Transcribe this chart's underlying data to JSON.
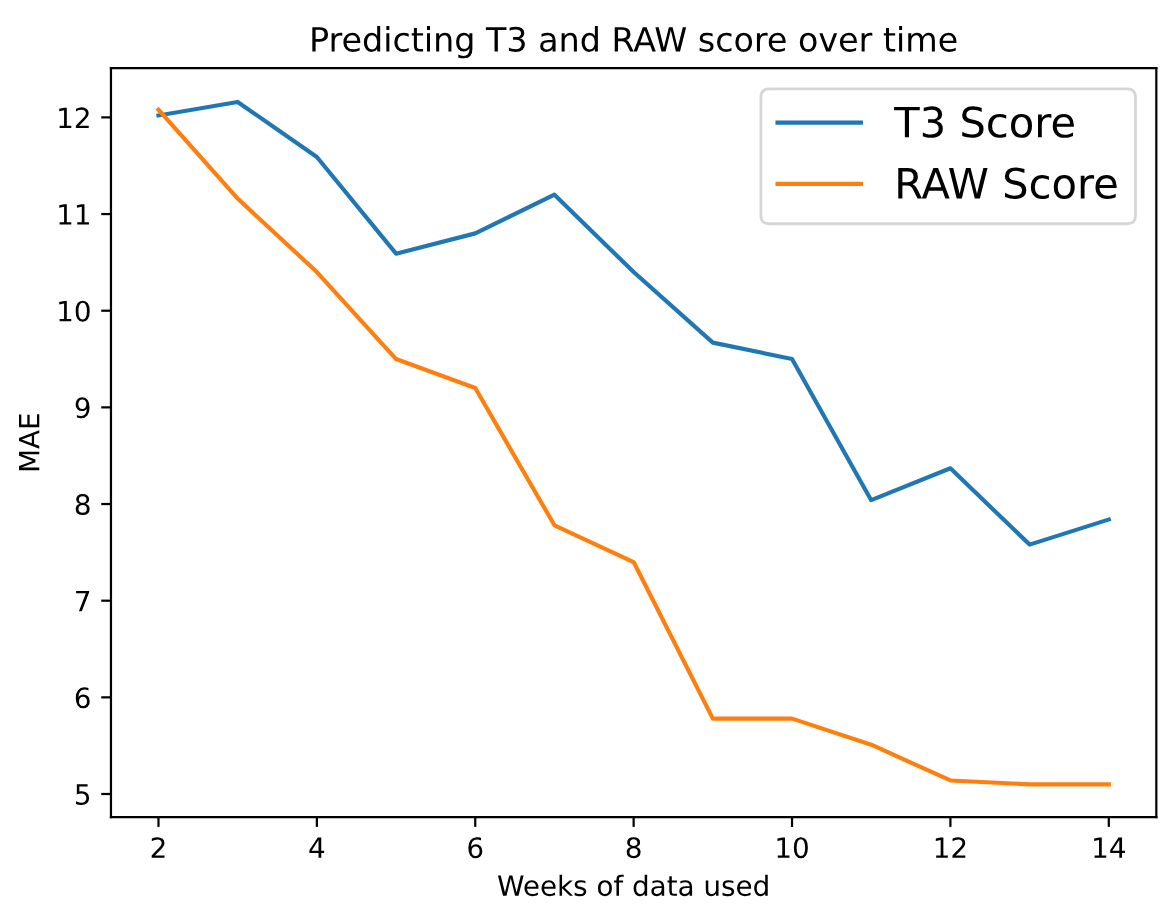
{
  "chart_data": {
    "type": "line",
    "title": "Predicting T3 and RAW score over time",
    "xlabel": "Weeks of data used",
    "ylabel": "MAE",
    "x": [
      2,
      3,
      4,
      5,
      6,
      7,
      8,
      9,
      10,
      11,
      12,
      13,
      14
    ],
    "series": [
      {
        "name": "T3 Score",
        "color": "#1f77b4",
        "values": [
          12.02,
          12.16,
          11.59,
          10.59,
          10.8,
          11.2,
          10.4,
          9.67,
          9.5,
          8.04,
          8.37,
          7.58,
          7.84
        ]
      },
      {
        "name": "RAW Score",
        "color": "#ff7f0e",
        "values": [
          12.08,
          11.16,
          10.4,
          9.5,
          9.2,
          7.78,
          7.4,
          5.78,
          5.78,
          5.51,
          5.14,
          5.1,
          5.1
        ]
      }
    ],
    "xlim": [
      1.4,
      14.6
    ],
    "ylim": [
      4.76,
      12.51
    ],
    "xticks": [
      2,
      4,
      6,
      8,
      10,
      12,
      14
    ],
    "yticks": [
      5,
      6,
      7,
      8,
      9,
      10,
      11,
      12
    ],
    "grid": false,
    "legend": "top right",
    "marker": "none",
    "line_style": "solid"
  }
}
